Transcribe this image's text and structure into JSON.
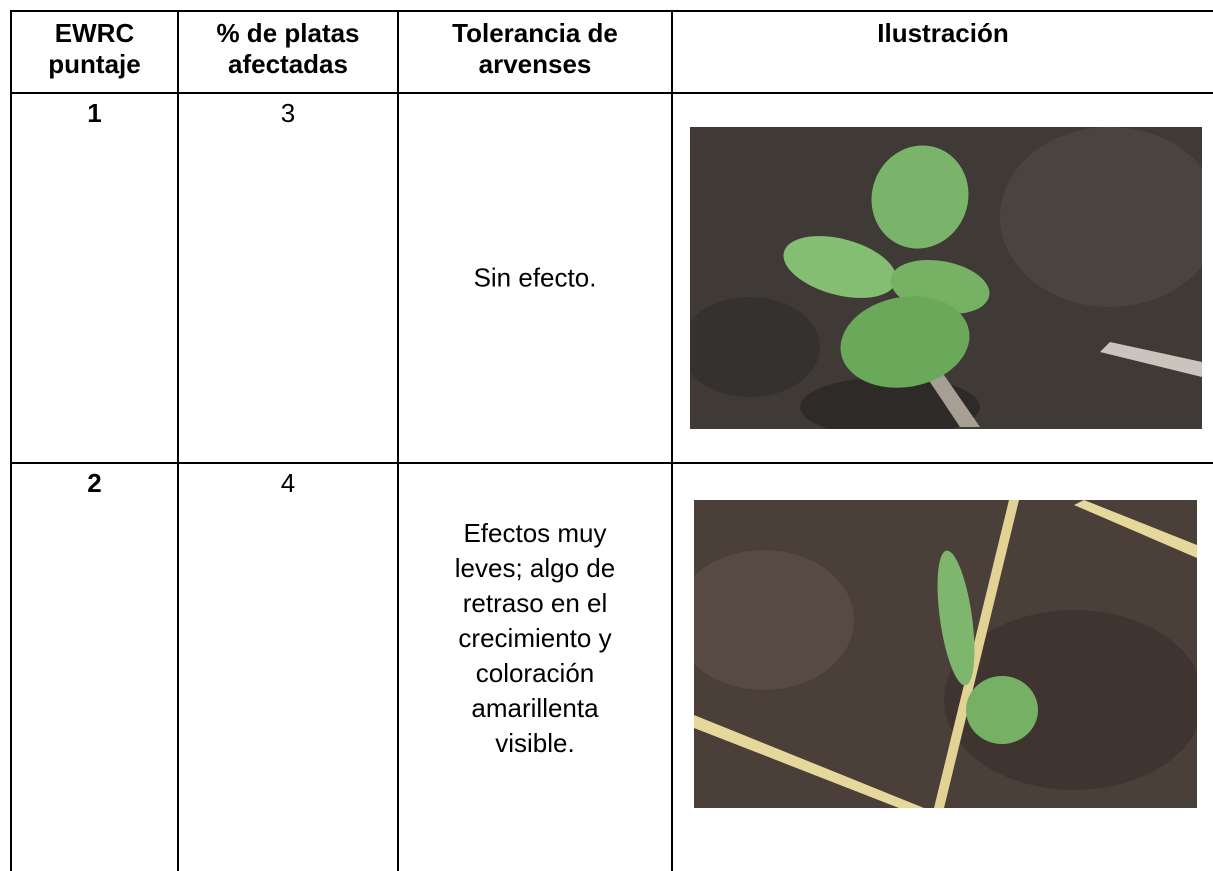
{
  "table": {
    "headers": [
      "EWRC puntaje",
      "% de platas afectadas",
      "Tolerancia de arvenses",
      "Ilustración"
    ],
    "rows": [
      [
        1,
        3,
        "Sin efecto."
      ],
      [
        2,
        4,
        "Efectos muy leves; algo de retraso en el crecimiento y coloración amarillenta visible."
      ]
    ]
  }
}
